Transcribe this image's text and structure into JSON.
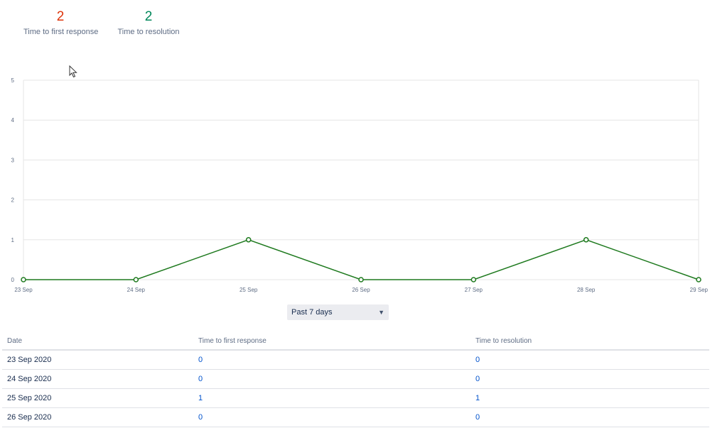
{
  "metrics": {
    "first_response": {
      "value": "2",
      "label": "Time to first response",
      "color": "#de350b"
    },
    "resolution": {
      "value": "2",
      "label": "Time to resolution",
      "color": "#00875a"
    }
  },
  "chart_data": {
    "type": "line",
    "x": [
      "23 Sep",
      "24 Sep",
      "25 Sep",
      "26 Sep",
      "27 Sep",
      "28 Sep",
      "29 Sep"
    ],
    "series": [
      {
        "values": [
          0,
          0,
          1,
          0,
          0,
          1,
          0
        ],
        "color": "#1f7a1f"
      }
    ],
    "ylim": [
      0,
      5
    ],
    "yticks": [
      0,
      1,
      2,
      3,
      4,
      5
    ],
    "grid": true,
    "title": "",
    "xlabel": "",
    "ylabel": ""
  },
  "range_select": {
    "value": "Past 7 days"
  },
  "table": {
    "headers": {
      "date": "Date",
      "first_response": "Time to first response",
      "resolution": "Time to resolution"
    },
    "rows": [
      {
        "date": "23 Sep 2020",
        "first_response": "0",
        "resolution": "0"
      },
      {
        "date": "24 Sep 2020",
        "first_response": "0",
        "resolution": "0"
      },
      {
        "date": "25 Sep 2020",
        "first_response": "1",
        "resolution": "1"
      },
      {
        "date": "26 Sep 2020",
        "first_response": "0",
        "resolution": "0"
      }
    ]
  }
}
